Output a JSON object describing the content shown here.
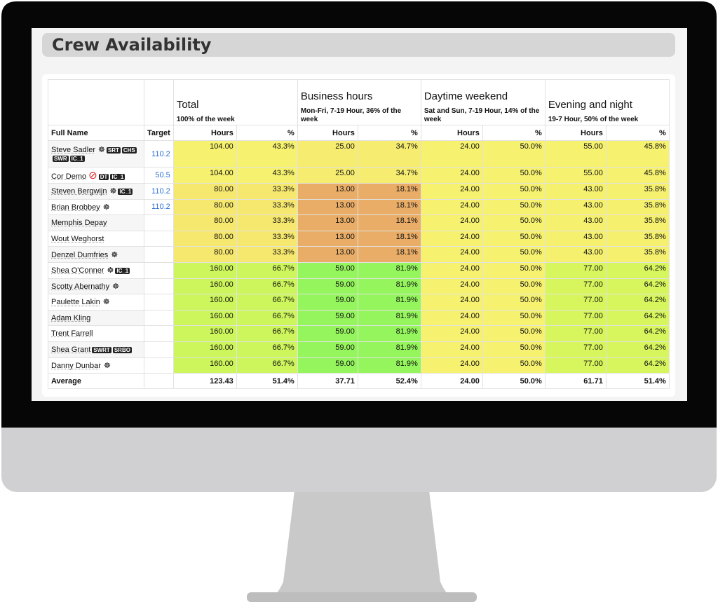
{
  "header": {
    "title": "Crew Availability"
  },
  "table": {
    "groups": [
      {
        "title": "Total",
        "subtitle": "100% of the week"
      },
      {
        "title": "Business hours",
        "subtitle": "Mon-Fri, 7-19 Hour, 36% of the week"
      },
      {
        "title": "Daytime weekend",
        "subtitle": "Sat and Sun, 7-19 Hour, 14% of the week"
      },
      {
        "title": "Evening and night",
        "subtitle": "19-7 Hour, 50% of the week"
      }
    ],
    "columns": [
      "Full Name",
      "Target",
      "Hours",
      "%",
      "Hours",
      "%",
      "Hours",
      "%",
      "Hours",
      "%"
    ],
    "rows": [
      {
        "name": "Steve Sadler",
        "wheel": true,
        "badges": [
          "SRT",
          "CHS",
          "SWR",
          "IC_1"
        ],
        "target": "110.2",
        "cells": [
          "104.00",
          "43.3%",
          "25.00",
          "34.7%",
          "24.00",
          "50.0%",
          "55.00",
          "45.8%"
        ]
      },
      {
        "name": "Cor Demo",
        "blocked": true,
        "badges": [
          "DT",
          "IC_1"
        ],
        "target": "50.5",
        "cells": [
          "104.00",
          "43.3%",
          "25.00",
          "34.7%",
          "24.00",
          "50.0%",
          "55.00",
          "45.8%"
        ]
      },
      {
        "name": "Steven Bergwijn",
        "wheel": true,
        "badges": [
          "IC_1"
        ],
        "target": "110.2",
        "cells": [
          "80.00",
          "33.3%",
          "13.00",
          "18.1%",
          "24.00",
          "50.0%",
          "43.00",
          "35.8%"
        ]
      },
      {
        "name": "Brian Brobbey",
        "wheel": true,
        "badges": [],
        "target": "110.2",
        "cells": [
          "80.00",
          "33.3%",
          "13.00",
          "18.1%",
          "24.00",
          "50.0%",
          "43.00",
          "35.8%"
        ]
      },
      {
        "name": "Memphis Depay",
        "badges": [],
        "target": null,
        "cells": [
          "80.00",
          "33.3%",
          "13.00",
          "18.1%",
          "24.00",
          "50.0%",
          "43.00",
          "35.8%"
        ]
      },
      {
        "name": "Wout Weghorst",
        "badges": [],
        "target": null,
        "cells": [
          "80.00",
          "33.3%",
          "13.00",
          "18.1%",
          "24.00",
          "50.0%",
          "43.00",
          "35.8%"
        ]
      },
      {
        "name": "Denzel Dumfries",
        "wheel": true,
        "badges": [],
        "target": null,
        "cells": [
          "80.00",
          "33.3%",
          "13.00",
          "18.1%",
          "24.00",
          "50.0%",
          "43.00",
          "35.8%"
        ]
      },
      {
        "name": "Shea O'Conner",
        "wheel": true,
        "badges": [
          "IC_1"
        ],
        "target": null,
        "cells": [
          "160.00",
          "66.7%",
          "59.00",
          "81.9%",
          "24.00",
          "50.0%",
          "77.00",
          "64.2%"
        ]
      },
      {
        "name": "Scotty Abernathy",
        "wheel": true,
        "badges": [],
        "target": null,
        "cells": [
          "160.00",
          "66.7%",
          "59.00",
          "81.9%",
          "24.00",
          "50.0%",
          "77.00",
          "64.2%"
        ]
      },
      {
        "name": "Paulette Lakin",
        "wheel": true,
        "badges": [],
        "target": null,
        "cells": [
          "160.00",
          "66.7%",
          "59.00",
          "81.9%",
          "24.00",
          "50.0%",
          "77.00",
          "64.2%"
        ]
      },
      {
        "name": "Adam Kling",
        "badges": [],
        "target": null,
        "cells": [
          "160.00",
          "66.7%",
          "59.00",
          "81.9%",
          "24.00",
          "50.0%",
          "77.00",
          "64.2%"
        ]
      },
      {
        "name": "Trent Farrell",
        "badges": [],
        "target": null,
        "cells": [
          "160.00",
          "66.7%",
          "59.00",
          "81.9%",
          "24.00",
          "50.0%",
          "77.00",
          "64.2%"
        ]
      },
      {
        "name": "Shea Grant",
        "badges": [
          "SWRT",
          "SRBO"
        ],
        "target": null,
        "cells": [
          "160.00",
          "66.7%",
          "59.00",
          "81.9%",
          "24.00",
          "50.0%",
          "77.00",
          "64.2%"
        ]
      },
      {
        "name": "Danny Dunbar",
        "wheel": true,
        "badges": [],
        "target": null,
        "cells": [
          "160.00",
          "66.7%",
          "59.00",
          "81.9%",
          "24.00",
          "50.0%",
          "77.00",
          "64.2%"
        ]
      }
    ],
    "footer": {
      "label": "Average",
      "cells": [
        "123.43",
        "51.4%",
        "37.71",
        "52.4%",
        "24.00",
        "50.0%",
        "61.71",
        "51.4%"
      ]
    }
  }
}
